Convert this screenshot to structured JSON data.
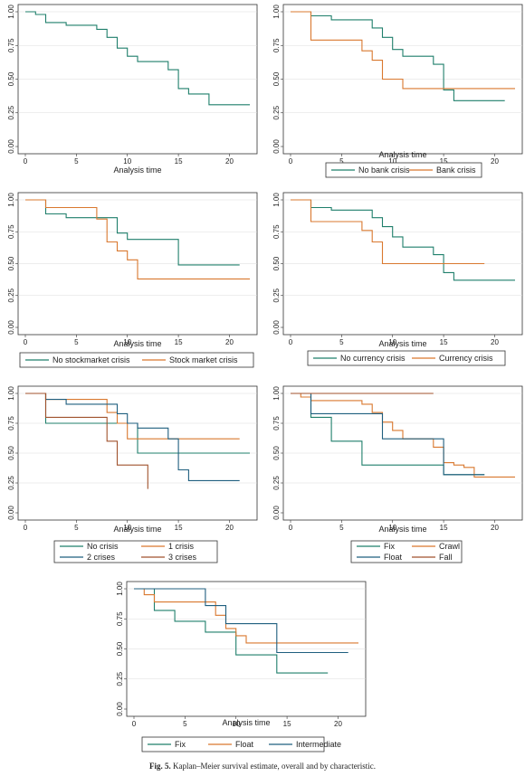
{
  "colors": {
    "green": "#1f7f6b",
    "orange": "#d9782f",
    "brown": "#a0522d",
    "blue": "#1f5f7f"
  },
  "caption": {
    "label": "Fig. 5.",
    "text": " Kaplan–Meier survival estimate, overall and by characteristic."
  },
  "chart_data": [
    {
      "type": "line",
      "step": true,
      "id": "overall",
      "xlabel": "Analysis time",
      "xlim": [
        0,
        22
      ],
      "ylim": [
        0,
        1
      ],
      "xticks": [
        "0",
        "5",
        "10",
        "15",
        "20"
      ],
      "yticks": [
        "0.00",
        "0.25",
        "0.50",
        "0.75",
        "1.00"
      ],
      "legend": [],
      "series": [
        {
          "color": "green",
          "x": [
            0,
            1,
            2,
            4,
            7,
            8,
            9,
            10,
            11,
            14,
            15,
            16,
            18,
            22
          ],
          "y": [
            1.0,
            0.98,
            0.92,
            0.9,
            0.87,
            0.81,
            0.73,
            0.67,
            0.63,
            0.57,
            0.43,
            0.39,
            0.31,
            0.31
          ]
        }
      ]
    },
    {
      "type": "line",
      "step": true,
      "id": "bank",
      "xlabel": "Analysis time",
      "xlim": [
        0,
        22
      ],
      "ylim": [
        0,
        1
      ],
      "xticks": [
        "0",
        "5",
        "10",
        "15",
        "20"
      ],
      "yticks": [
        "0.00",
        "0.25",
        "0.50",
        "0.75",
        "1.00"
      ],
      "legend": [
        "No bank crisis",
        "Bank crisis"
      ],
      "legend_cols": 2,
      "series": [
        {
          "name": "No bank crisis",
          "color": "green",
          "x": [
            0,
            2,
            4,
            8,
            9,
            10,
            11,
            12,
            14,
            15,
            16,
            21
          ],
          "y": [
            1.0,
            0.97,
            0.94,
            0.88,
            0.81,
            0.72,
            0.67,
            0.67,
            0.61,
            0.42,
            0.34,
            0.34
          ]
        },
        {
          "name": "Bank crisis",
          "color": "orange",
          "x": [
            0,
            2,
            7,
            8,
            9,
            11,
            22
          ],
          "y": [
            1.0,
            0.79,
            0.71,
            0.64,
            0.5,
            0.43,
            0.43
          ]
        }
      ]
    },
    {
      "type": "line",
      "step": true,
      "id": "stock",
      "xlabel": "Analysis time",
      "xlim": [
        0,
        22
      ],
      "ylim": [
        0,
        1
      ],
      "xticks": [
        "0",
        "5",
        "10",
        "15",
        "20"
      ],
      "yticks": [
        "0.00",
        "0.25",
        "0.50",
        "0.75",
        "1.00"
      ],
      "legend": [
        "No stockmarket crisis",
        "Stock market crisis"
      ],
      "legend_cols": 2,
      "series": [
        {
          "name": "No stockmarket crisis",
          "color": "green",
          "x": [
            0,
            2,
            4,
            8,
            9,
            10,
            15,
            21
          ],
          "y": [
            1.0,
            0.89,
            0.86,
            0.86,
            0.74,
            0.69,
            0.49,
            0.49
          ]
        },
        {
          "name": "Stock market crisis",
          "color": "orange",
          "x": [
            0,
            2,
            7,
            8,
            9,
            10,
            11,
            22
          ],
          "y": [
            1.0,
            0.94,
            0.85,
            0.67,
            0.6,
            0.53,
            0.38,
            0.38
          ]
        }
      ]
    },
    {
      "type": "line",
      "step": true,
      "id": "currency",
      "xlabel": "Analysis time",
      "xlim": [
        0,
        22
      ],
      "ylim": [
        0,
        1
      ],
      "xticks": [
        "0",
        "5",
        "10",
        "15",
        "20"
      ],
      "yticks": [
        "0.00",
        "0.25",
        "0.50",
        "0.75",
        "1.00"
      ],
      "legend": [
        "No currency crisis",
        "Currency crisis"
      ],
      "legend_cols": 2,
      "series": [
        {
          "name": "No currency crisis",
          "color": "green",
          "x": [
            0,
            2,
            4,
            8,
            9,
            10,
            11,
            14,
            15,
            16,
            22
          ],
          "y": [
            1.0,
            0.94,
            0.92,
            0.86,
            0.79,
            0.71,
            0.63,
            0.57,
            0.43,
            0.37,
            0.37
          ]
        },
        {
          "name": "Currency crisis",
          "color": "orange",
          "x": [
            0,
            2,
            7,
            8,
            9,
            19
          ],
          "y": [
            1.0,
            0.83,
            0.76,
            0.67,
            0.5,
            0.5
          ]
        }
      ]
    },
    {
      "type": "line",
      "step": true,
      "id": "crises",
      "xlabel": "Analysis time",
      "xlim": [
        0,
        22
      ],
      "ylim": [
        0,
        1
      ],
      "xticks": [
        "0",
        "5",
        "10",
        "15",
        "20"
      ],
      "yticks": [
        "0.00",
        "0.25",
        "0.50",
        "0.75",
        "1.00"
      ],
      "legend": [
        "No crisis",
        "1 crisis",
        "2 crises",
        "3 crises"
      ],
      "legend_cols": 2,
      "series": [
        {
          "name": "No crisis",
          "color": "green",
          "x": [
            0,
            2,
            9,
            11,
            22
          ],
          "y": [
            1.0,
            0.75,
            0.75,
            0.5,
            0.5
          ]
        },
        {
          "name": "1 crisis",
          "color": "orange",
          "x": [
            0,
            2,
            8,
            9,
            10,
            21
          ],
          "y": [
            1.0,
            0.95,
            0.84,
            0.75,
            0.62,
            0.62
          ]
        },
        {
          "name": "2 crises",
          "color": "blue",
          "x": [
            0,
            2,
            4,
            9,
            10,
            11,
            14,
            15,
            16,
            21
          ],
          "y": [
            1.0,
            0.95,
            0.91,
            0.83,
            0.75,
            0.71,
            0.62,
            0.36,
            0.27,
            0.27
          ]
        },
        {
          "name": "3 crises",
          "color": "brown",
          "x": [
            0,
            2,
            7,
            8,
            9,
            12
          ],
          "y": [
            1.0,
            0.8,
            0.8,
            0.6,
            0.4,
            0.2
          ]
        }
      ]
    },
    {
      "type": "line",
      "step": true,
      "id": "regime",
      "xlabel": "Analysis time",
      "xlim": [
        0,
        22
      ],
      "ylim": [
        0,
        1
      ],
      "xticks": [
        "0",
        "5",
        "10",
        "15",
        "20"
      ],
      "yticks": [
        "0.00",
        "0.25",
        "0.50",
        "0.75",
        "1.00"
      ],
      "legend": [
        "Fix",
        "Crawl",
        "Float",
        "Fall"
      ],
      "legend_cols": 2,
      "series": [
        {
          "name": "Fix",
          "color": "green",
          "x": [
            0,
            2,
            4,
            7,
            15,
            19
          ],
          "y": [
            1.0,
            0.8,
            0.6,
            0.4,
            0.32,
            0.32
          ]
        },
        {
          "name": "Crawl",
          "color": "orange",
          "x": [
            0,
            1,
            2,
            7,
            8,
            9,
            10,
            11,
            14,
            15,
            16,
            17,
            18,
            22
          ],
          "y": [
            1.0,
            0.97,
            0.94,
            0.91,
            0.84,
            0.76,
            0.69,
            0.62,
            0.55,
            0.42,
            0.4,
            0.38,
            0.3,
            0.3
          ]
        },
        {
          "name": "Float",
          "color": "blue",
          "x": [
            0,
            2,
            9,
            15,
            19
          ],
          "y": [
            1.0,
            0.83,
            0.62,
            0.32,
            0.32
          ]
        },
        {
          "name": "Fall",
          "color": "brown",
          "x": [
            0,
            14
          ],
          "y": [
            1.0,
            1.0
          ]
        }
      ]
    },
    {
      "type": "line",
      "step": true,
      "id": "regime2",
      "xlabel": "Analysis time",
      "xlim": [
        0,
        22
      ],
      "ylim": [
        0,
        1
      ],
      "xticks": [
        "0",
        "5",
        "10",
        "15",
        "20"
      ],
      "yticks": [
        "0.00",
        "0.25",
        "0.50",
        "0.75",
        "1.00"
      ],
      "legend": [
        "Fix",
        "Float",
        "Intermediate"
      ],
      "legend_cols": 3,
      "series": [
        {
          "name": "Fix",
          "color": "green",
          "x": [
            0,
            2,
            4,
            7,
            10,
            14,
            19
          ],
          "y": [
            1.0,
            0.82,
            0.73,
            0.64,
            0.45,
            0.3,
            0.3
          ]
        },
        {
          "name": "Float",
          "color": "orange",
          "x": [
            0,
            1,
            2,
            8,
            9,
            10,
            11,
            22
          ],
          "y": [
            1.0,
            0.95,
            0.89,
            0.78,
            0.67,
            0.61,
            0.55,
            0.55
          ]
        },
        {
          "name": "Intermediate",
          "color": "blue",
          "x": [
            0,
            7,
            9,
            11,
            14,
            21
          ],
          "y": [
            1.0,
            0.86,
            0.71,
            0.71,
            0.47,
            0.47
          ]
        }
      ]
    }
  ]
}
